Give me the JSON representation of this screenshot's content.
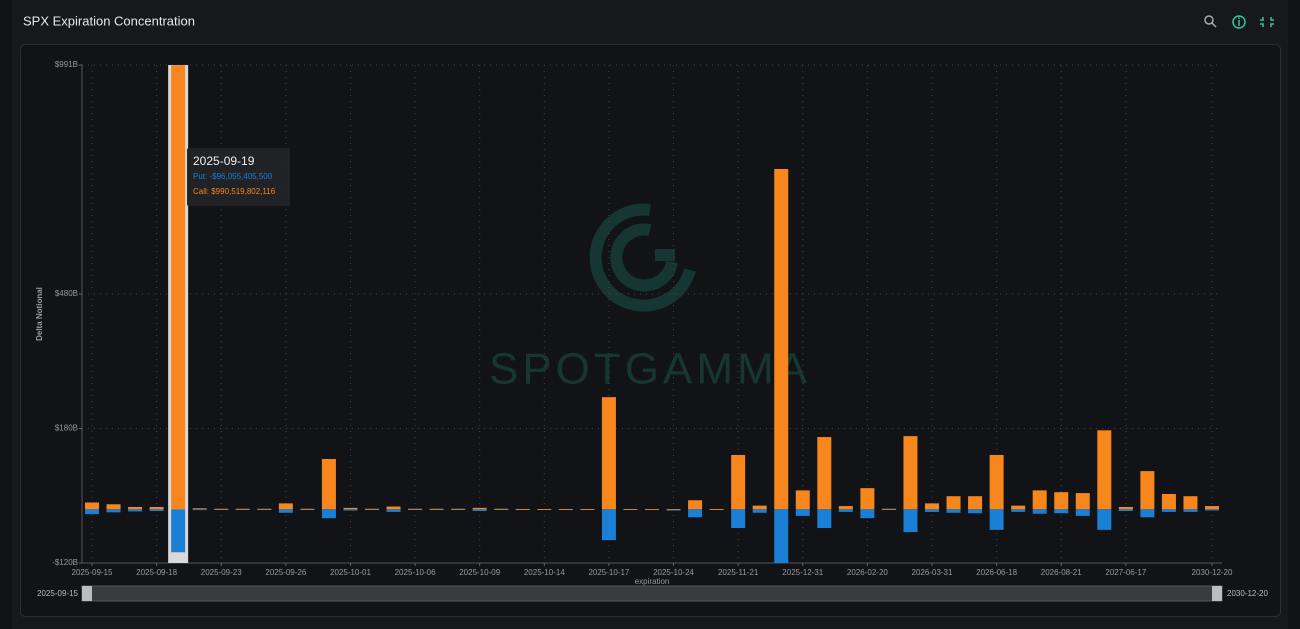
{
  "header": {
    "title": "SPX Expiration Concentration"
  },
  "chart_data": {
    "type": "bar",
    "stacked": true,
    "y_label": "Delta Notional",
    "x_label": "expiration",
    "watermark": "SPOTGAMMA",
    "categories": [
      "2025-09-15",
      null,
      null,
      "2025-09-18",
      null,
      null,
      "2025-09-23",
      null,
      null,
      "2025-09-26",
      null,
      null,
      "2025-10-01",
      null,
      null,
      "2025-10-06",
      null,
      null,
      "2025-10-09",
      null,
      null,
      "2025-10-14",
      null,
      null,
      "2025-10-17",
      null,
      null,
      "2025-10-24",
      null,
      null,
      "2025-11-21",
      null,
      null,
      "2025-12-31",
      null,
      null,
      "2026-02-20",
      null,
      null,
      "2026-03-31",
      null,
      null,
      "2026-06-18",
      null,
      null,
      "2026-08-21",
      null,
      null,
      "2027-06-17",
      null,
      null,
      null,
      "2030-12-20"
    ],
    "series": [
      {
        "name": "Put",
        "color": "#1b7fd6",
        "values": [
          -11,
          -7,
          -5,
          -4,
          -96.06,
          -2,
          -1,
          -1,
          -1,
          -8,
          -1,
          -20,
          -3,
          -1,
          -6,
          -1,
          -1,
          -1,
          -4,
          -1,
          -0.5,
          -0.5,
          -0.5,
          -0.5,
          -69,
          -0.5,
          0,
          -3,
          -18,
          -0.5,
          -42,
          -8,
          -120,
          -15,
          -42,
          -6,
          -20,
          -1,
          -51,
          -6,
          -8,
          -9,
          -46,
          -6,
          -10,
          -9,
          -15,
          -46,
          -4,
          -18,
          -6,
          -6,
          -3
        ]
      },
      {
        "name": "Call",
        "color": "#f7861c",
        "values": [
          15,
          11,
          5,
          5,
          990.52,
          2,
          1,
          1,
          1,
          13,
          1,
          112,
          3,
          1,
          6,
          1,
          1,
          1,
          3,
          1,
          0.5,
          0.5,
          0.5,
          0.5,
          250,
          0.5,
          0,
          0,
          20,
          0.5,
          121,
          8,
          759,
          42,
          161,
          7,
          47,
          1,
          163,
          13,
          29,
          29,
          121,
          8,
          42,
          38,
          36,
          176,
          5,
          85,
          34,
          29,
          7
        ]
      }
    ],
    "ylim": [
      -120,
      991
    ],
    "yticks": [
      {
        "value": -120,
        "label": "-$120B"
      },
      {
        "value": 180,
        "label": "$180B"
      },
      {
        "value": 480,
        "label": "$480B"
      },
      {
        "value": 991,
        "label": "$991B"
      }
    ],
    "grid": true,
    "highlight_index": 4,
    "tooltip": {
      "date": "2025-09-19",
      "put": "Put: -$96,055,405,500",
      "call": "Call: $990,519,802,116"
    }
  },
  "slider": {
    "start": "2025-09-15",
    "end": "2030-12-20"
  }
}
